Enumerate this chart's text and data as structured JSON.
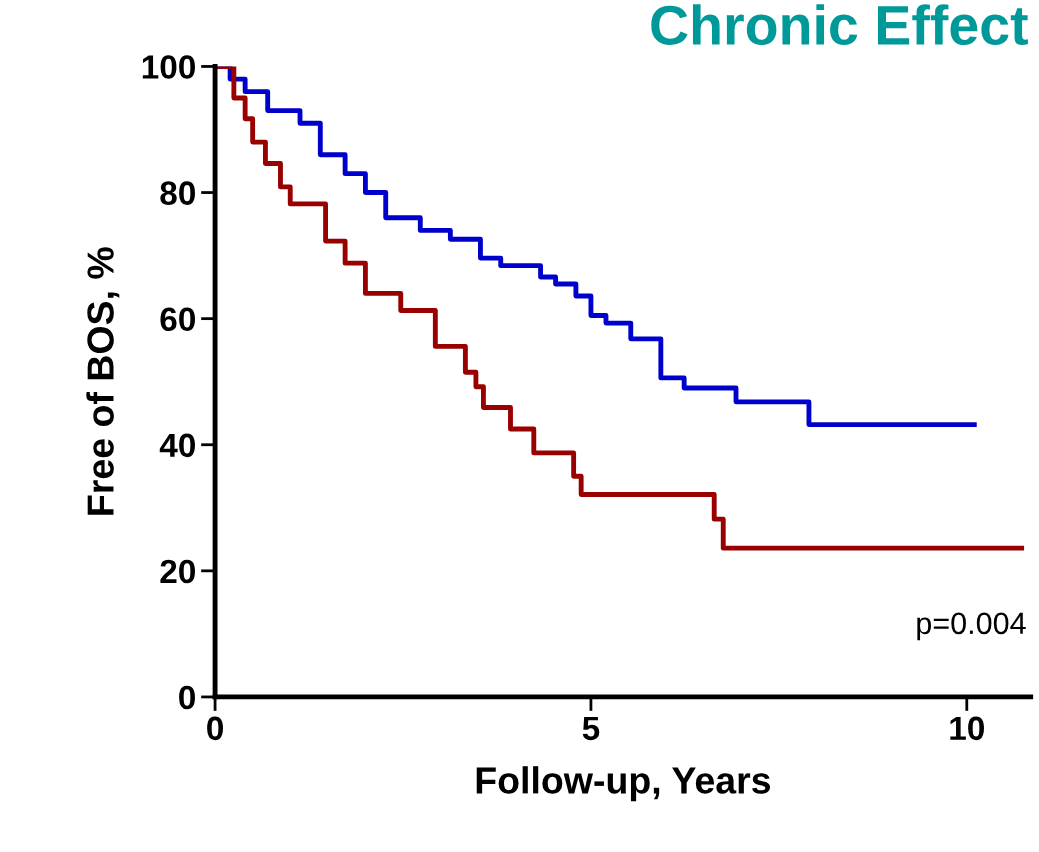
{
  "chart_data": {
    "type": "step",
    "title": "Chronic Effect",
    "xlabel": "Follow-up, Years",
    "ylabel": "Free of BOS, %",
    "xlim": [
      0,
      10.85
    ],
    "xticks": [
      0,
      5,
      10
    ],
    "ylim": [
      0,
      100
    ],
    "yticks": [
      0,
      20,
      40,
      60,
      80,
      100
    ],
    "grid": false,
    "legend": false,
    "series": [
      {
        "color": "#0000cc",
        "x": [
          0,
          0.2,
          0.4,
          0.7,
          1.13,
          1.4,
          1.73,
          2.0,
          2.27,
          2.73,
          3.13,
          3.53,
          3.8,
          4.33,
          4.53,
          4.8,
          5.0,
          5.2,
          5.53,
          5.93,
          6.24,
          6.93,
          7.9,
          10.1
        ],
        "values": [
          100,
          98,
          96,
          93,
          91,
          86,
          83,
          80,
          76,
          74,
          72.6,
          69.6,
          68.4,
          66.6,
          65.5,
          63.6,
          60.5,
          59.3,
          56.8,
          50.6,
          49,
          46.8,
          43.2,
          43.2
        ]
      },
      {
        "color": "#990000",
        "x": [
          0,
          0.25,
          0.4,
          0.5,
          0.67,
          0.87,
          1.0,
          1.47,
          1.73,
          2.0,
          2.47,
          2.93,
          3.33,
          3.47,
          3.57,
          3.93,
          4.24,
          4.77,
          4.87,
          6.64,
          6.76,
          10.73
        ],
        "values": [
          100,
          95,
          91.7,
          88,
          84.6,
          80.9,
          78.2,
          72.3,
          68.8,
          64,
          61.3,
          55.6,
          51.5,
          49.2,
          45.9,
          42.5,
          38.7,
          35,
          32.1,
          28.2,
          23.6,
          23.6
        ]
      }
    ],
    "annotations": [
      "p=0.004"
    ]
  }
}
